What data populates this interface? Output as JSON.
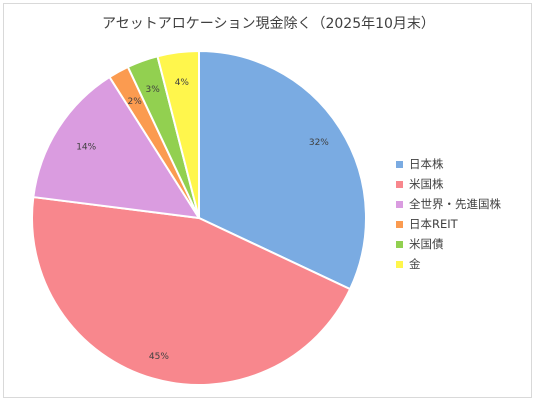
{
  "chart_data": {
    "type": "pie",
    "title": "アセットアロケーション現金除く（2025年10月末）",
    "categories": [
      "日本株",
      "米国株",
      "全世界・先進国株",
      "日本REIT",
      "米国債",
      "金"
    ],
    "values": [
      32,
      45,
      14,
      2,
      3,
      4
    ],
    "data_labels": [
      "32%",
      "45%",
      "14%",
      "2%",
      "3%",
      "4%"
    ],
    "colors": [
      "#7aabe2",
      "#f8878d",
      "#da9ce0",
      "#fb9b50",
      "#92d050",
      "#fff64c"
    ],
    "legend_position": "right",
    "start_angle": "top",
    "direction": "clockwise"
  }
}
